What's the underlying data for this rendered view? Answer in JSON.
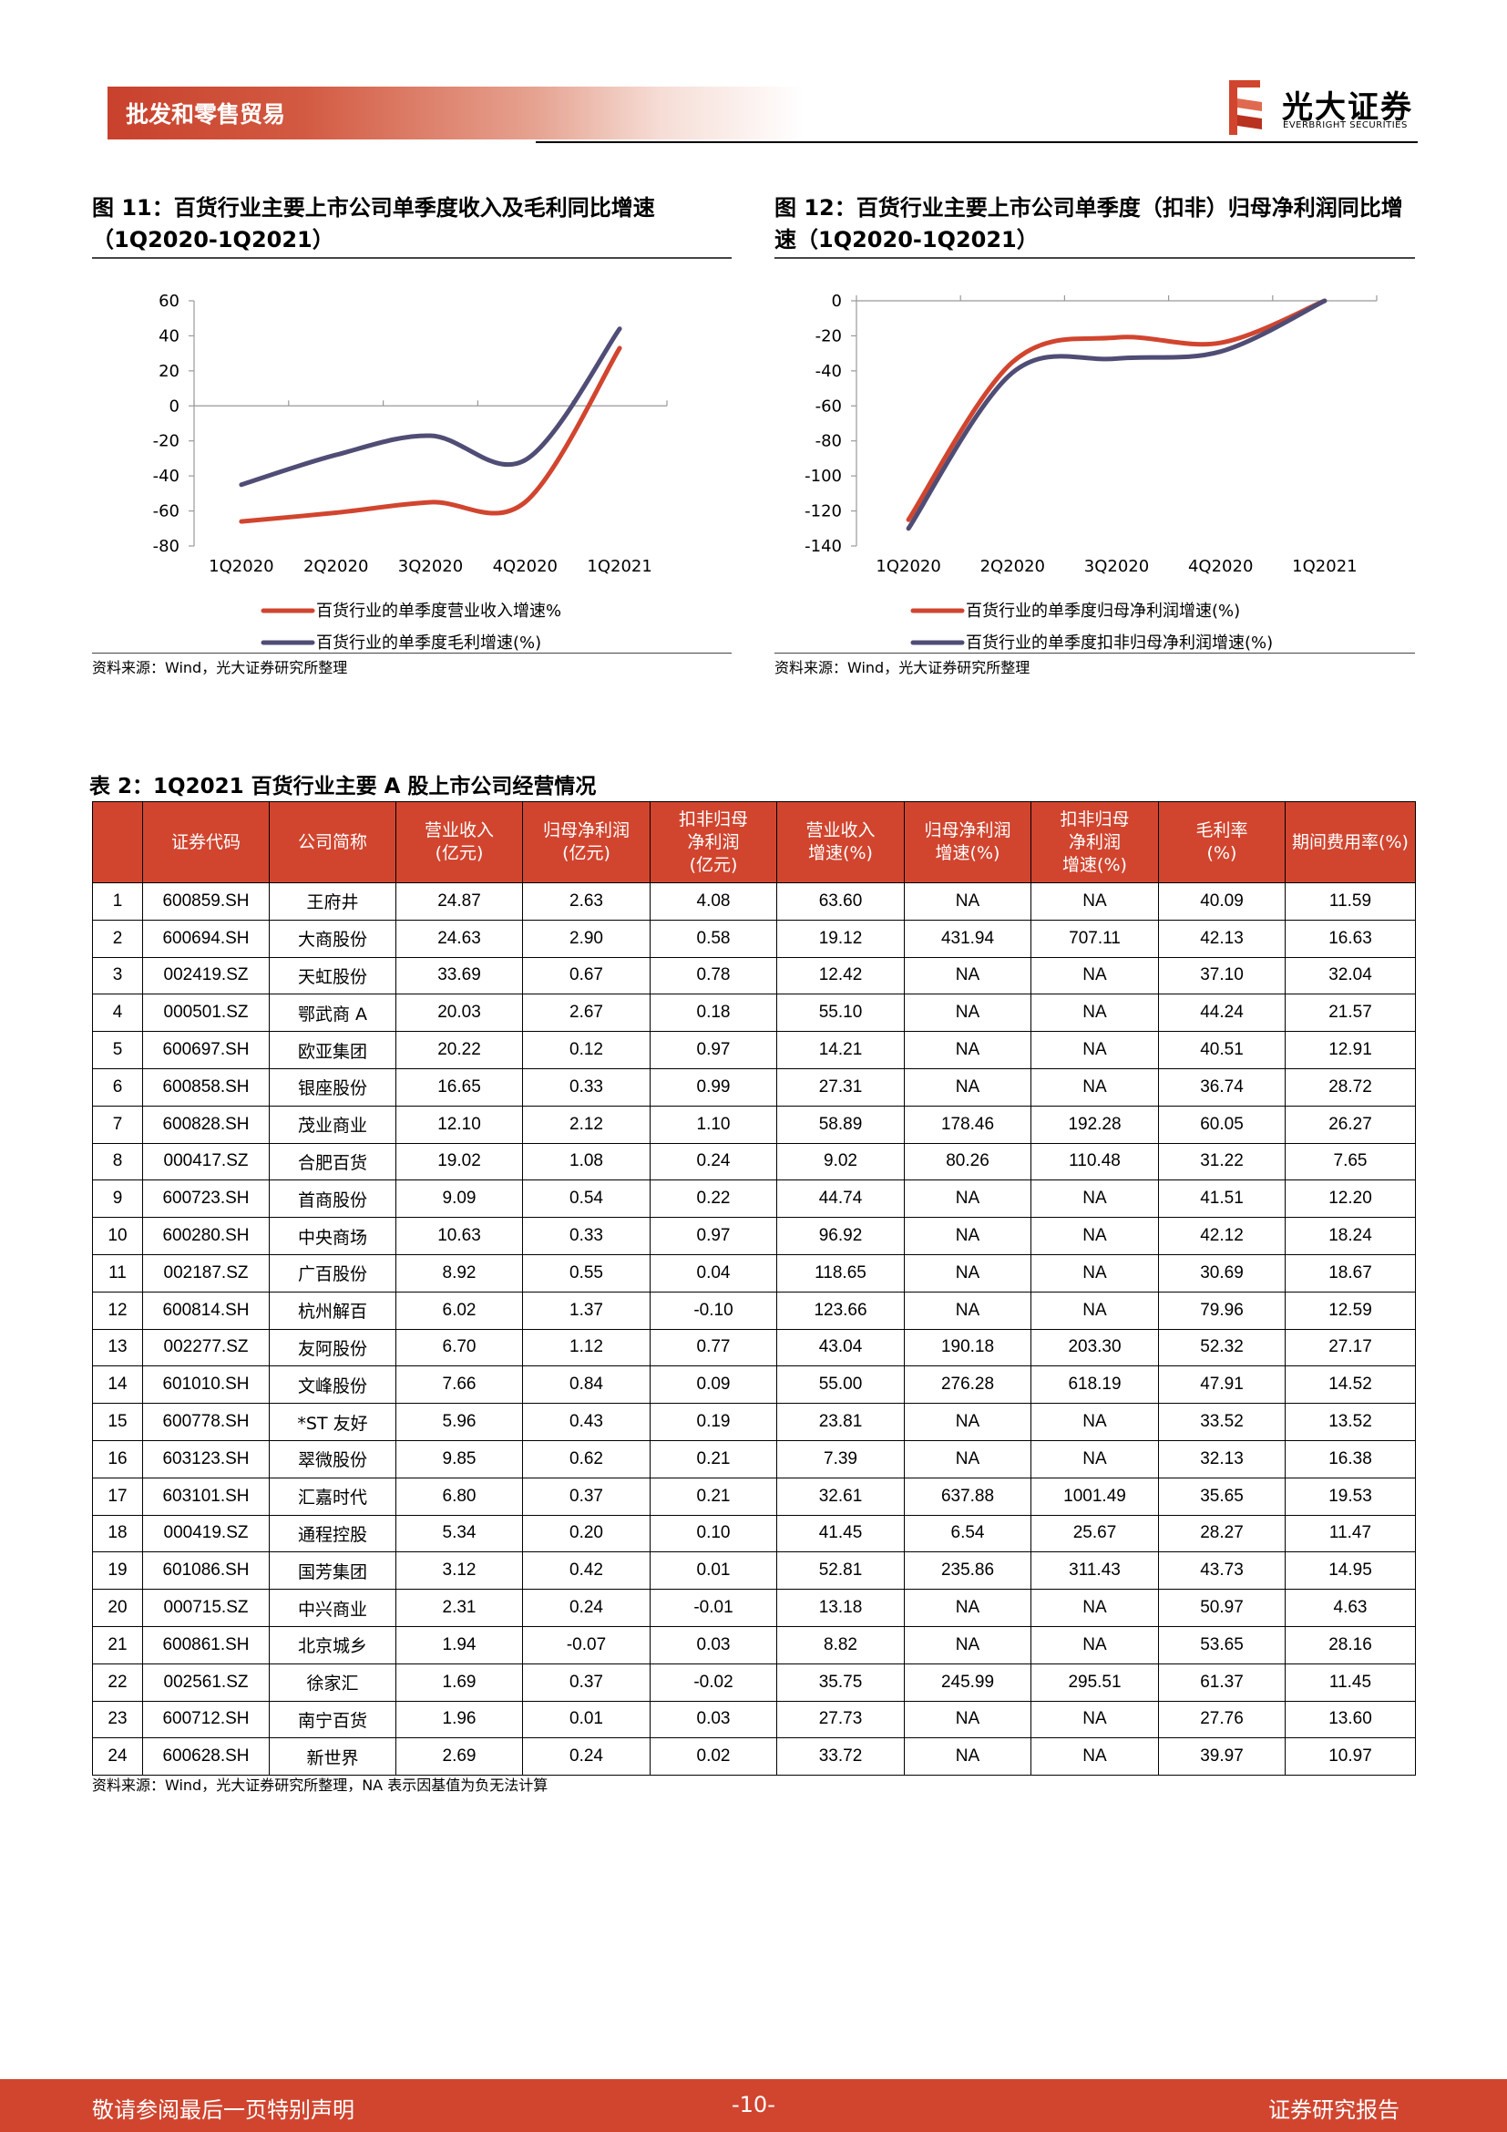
{
  "header": {
    "section_title": "批发和零售贸易",
    "logo_cn": "光大证券",
    "logo_en": "EVERBRIGHT SECURITIES",
    "brand_color": "#c8412c"
  },
  "fig11": {
    "caption_line1": "图 11：百货行业主要上市公司单季度收入及毛利同比增速",
    "caption_line2": "（1Q2020-1Q2021）",
    "source": "资料来源：Wind，光大证券研究所整理"
  },
  "fig12": {
    "caption_line1": "图 12：百货行业主要上市公司单季度（扣非）归母净利润同比增",
    "caption_line2": "速（1Q2020-1Q2021）",
    "source": "资料来源：Wind，光大证券研究所整理"
  },
  "chart_data": [
    {
      "type": "line",
      "categories": [
        "1Q2020",
        "2Q2020",
        "3Q2020",
        "4Q2020",
        "1Q2021"
      ],
      "ylim": [
        -80,
        60
      ],
      "yticks": [
        "60",
        "40",
        "20",
        "0",
        "-20",
        "-40",
        "-60",
        "-80"
      ],
      "grid": false,
      "legend_position": "bottom",
      "series": [
        {
          "name": "百货行业的单季度营业收入增速%",
          "color": "#d1452f",
          "values": [
            -66,
            -61,
            -55,
            -55,
            33
          ]
        },
        {
          "name": "百货行业的单季度毛利增速(%)",
          "color": "#4f4d75",
          "values": [
            -45,
            -28,
            -17,
            -31,
            44
          ]
        }
      ]
    },
    {
      "type": "line",
      "categories": [
        "1Q2020",
        "2Q2020",
        "3Q2020",
        "4Q2020",
        "1Q2021"
      ],
      "ylim": [
        -140,
        0
      ],
      "yticks": [
        "0",
        "-20",
        "-40",
        "-60",
        "-80",
        "-100",
        "-120",
        "-140"
      ],
      "grid": false,
      "legend_position": "bottom",
      "series": [
        {
          "name": "百货行业的单季度归母净利润增速(%)",
          "color": "#d1452f",
          "values": [
            -125,
            -35,
            -21,
            -24,
            0
          ]
        },
        {
          "name": "百货行业的单季度扣非归母净利润增速(%)",
          "color": "#4f4d75",
          "values": [
            -130,
            -41,
            -33,
            -29,
            0
          ]
        }
      ]
    }
  ],
  "table2": {
    "title": "表 2：1Q2021 百货行业主要 A 股上市公司经营情况",
    "header_color": "#d1452f",
    "headers": [
      [
        ""
      ],
      [
        "证券代码"
      ],
      [
        "公司简称"
      ],
      [
        "营业收入",
        "(亿元)"
      ],
      [
        "归母净利润",
        "(亿元)"
      ],
      [
        "扣非归母",
        "净利润",
        "(亿元)"
      ],
      [
        "营业收入",
        "增速(%)"
      ],
      [
        "归母净利润",
        "增速(%)"
      ],
      [
        "扣非归母",
        "净利润",
        "增速(%)"
      ],
      [
        "毛利率",
        "(%)"
      ],
      [
        "期间费用率(%)"
      ]
    ],
    "rows": [
      [
        "1",
        "600859.SH",
        "王府井",
        "24.87",
        "2.63",
        "4.08",
        "63.60",
        "NA",
        "NA",
        "40.09",
        "11.59"
      ],
      [
        "2",
        "600694.SH",
        "大商股份",
        "24.63",
        "2.90",
        "0.58",
        "19.12",
        "431.94",
        "707.11",
        "42.13",
        "16.63"
      ],
      [
        "3",
        "002419.SZ",
        "天虹股份",
        "33.69",
        "0.67",
        "0.78",
        "12.42",
        "NA",
        "NA",
        "37.10",
        "32.04"
      ],
      [
        "4",
        "000501.SZ",
        "鄂武商 A",
        "20.03",
        "2.67",
        "0.18",
        "55.10",
        "NA",
        "NA",
        "44.24",
        "21.57"
      ],
      [
        "5",
        "600697.SH",
        "欧亚集团",
        "20.22",
        "0.12",
        "0.97",
        "14.21",
        "NA",
        "NA",
        "40.51",
        "12.91"
      ],
      [
        "6",
        "600858.SH",
        "银座股份",
        "16.65",
        "0.33",
        "0.99",
        "27.31",
        "NA",
        "NA",
        "36.74",
        "28.72"
      ],
      [
        "7",
        "600828.SH",
        "茂业商业",
        "12.10",
        "2.12",
        "1.10",
        "58.89",
        "178.46",
        "192.28",
        "60.05",
        "26.27"
      ],
      [
        "8",
        "000417.SZ",
        "合肥百货",
        "19.02",
        "1.08",
        "0.24",
        "9.02",
        "80.26",
        "110.48",
        "31.22",
        "7.65"
      ],
      [
        "9",
        "600723.SH",
        "首商股份",
        "9.09",
        "0.54",
        "0.22",
        "44.74",
        "NA",
        "NA",
        "41.51",
        "12.20"
      ],
      [
        "10",
        "600280.SH",
        "中央商场",
        "10.63",
        "0.33",
        "0.97",
        "96.92",
        "NA",
        "NA",
        "42.12",
        "18.24"
      ],
      [
        "11",
        "002187.SZ",
        "广百股份",
        "8.92",
        "0.55",
        "0.04",
        "118.65",
        "NA",
        "NA",
        "30.69",
        "18.67"
      ],
      [
        "12",
        "600814.SH",
        "杭州解百",
        "6.02",
        "1.37",
        "-0.10",
        "123.66",
        "NA",
        "NA",
        "79.96",
        "12.59"
      ],
      [
        "13",
        "002277.SZ",
        "友阿股份",
        "6.70",
        "1.12",
        "0.77",
        "43.04",
        "190.18",
        "203.30",
        "52.32",
        "27.17"
      ],
      [
        "14",
        "601010.SH",
        "文峰股份",
        "7.66",
        "0.84",
        "0.09",
        "55.00",
        "276.28",
        "618.19",
        "47.91",
        "14.52"
      ],
      [
        "15",
        "600778.SH",
        "*ST 友好",
        "5.96",
        "0.43",
        "0.19",
        "23.81",
        "NA",
        "NA",
        "33.52",
        "13.52"
      ],
      [
        "16",
        "603123.SH",
        "翠微股份",
        "9.85",
        "0.62",
        "0.21",
        "7.39",
        "NA",
        "NA",
        "32.13",
        "16.38"
      ],
      [
        "17",
        "603101.SH",
        "汇嘉时代",
        "6.80",
        "0.37",
        "0.21",
        "32.61",
        "637.88",
        "1001.49",
        "35.65",
        "19.53"
      ],
      [
        "18",
        "000419.SZ",
        "通程控股",
        "5.34",
        "0.20",
        "0.10",
        "41.45",
        "6.54",
        "25.67",
        "28.27",
        "11.47"
      ],
      [
        "19",
        "601086.SH",
        "国芳集团",
        "3.12",
        "0.42",
        "0.01",
        "52.81",
        "235.86",
        "311.43",
        "43.73",
        "14.95"
      ],
      [
        "20",
        "000715.SZ",
        "中兴商业",
        "2.31",
        "0.24",
        "-0.01",
        "13.18",
        "NA",
        "NA",
        "50.97",
        "4.63"
      ],
      [
        "21",
        "600861.SH",
        "北京城乡",
        "1.94",
        "-0.07",
        "0.03",
        "8.82",
        "NA",
        "NA",
        "53.65",
        "28.16"
      ],
      [
        "22",
        "002561.SZ",
        "徐家汇",
        "1.69",
        "0.37",
        "-0.02",
        "35.75",
        "245.99",
        "295.51",
        "61.37",
        "11.45"
      ],
      [
        "23",
        "600712.SH",
        "南宁百货",
        "1.96",
        "0.01",
        "0.03",
        "27.73",
        "NA",
        "NA",
        "27.76",
        "13.60"
      ],
      [
        "24",
        "600628.SH",
        "新世界",
        "2.69",
        "0.24",
        "0.02",
        "33.72",
        "NA",
        "NA",
        "39.97",
        "10.97"
      ]
    ],
    "source": "资料来源：Wind，光大证券研究所整理，NA 表示因基值为负无法计算"
  },
  "footer": {
    "left": "敬请参阅最后一页特别声明",
    "page": "-10-",
    "right": "证券研究报告"
  }
}
